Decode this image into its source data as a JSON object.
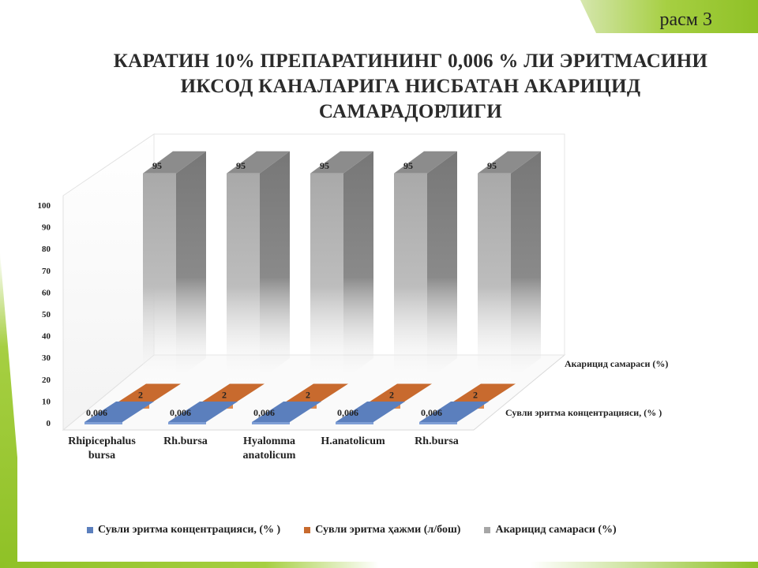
{
  "slide": {
    "label": "расм 3",
    "title_lines": [
      "КАРАТИН 10% ПРЕПАРАТИНИНГ 0,006 % ЛИ ЭРИТМАСИНИ",
      "ИКСОД КАНАЛАРИГА НИСБАТАН АКАРИЦИД",
      "САМАРАДОРЛИГИ"
    ],
    "accent_color": "#8fc126"
  },
  "chart_data": {
    "type": "bar",
    "variant": "3d-stacked-depth",
    "categories": [
      [
        "Rhipicephalus",
        "bursa"
      ],
      [
        "Rh.bursa"
      ],
      [
        "Hyalomma",
        "anatolicum"
      ],
      [
        "H.anatolicum"
      ],
      [
        "Rh.bursa"
      ]
    ],
    "series": [
      {
        "name": "Сувли эритма концентрацияси, (% )",
        "values": [
          0.006,
          0.006,
          0.006,
          0.006,
          0.006
        ],
        "labels": [
          "0,006",
          "0,006",
          "0,006",
          "0,006",
          "0,006"
        ],
        "color": "#5b7fbd"
      },
      {
        "name": "Сувли эритма ҳажми (л/бош)",
        "values": [
          2,
          2,
          2,
          2,
          2
        ],
        "labels": [
          "2",
          "2",
          "2",
          "2",
          "2"
        ],
        "color": "#c86a2e"
      },
      {
        "name": "Акарицид самараси (%)",
        "values": [
          95,
          95,
          95,
          95,
          95
        ],
        "labels": [
          "95",
          "95",
          "95",
          "95",
          "95"
        ],
        "color": "#a6a6a6"
      }
    ],
    "depth_axis_labels": [
      "Акарицид самараси (%)",
      "Сувли эритма концентрацияси, (% )"
    ],
    "y_ticks": [
      0,
      10,
      20,
      30,
      40,
      50,
      60,
      70,
      80,
      90,
      100
    ],
    "ylim": [
      0,
      100
    ],
    "grid": false,
    "legend_position": "bottom"
  }
}
